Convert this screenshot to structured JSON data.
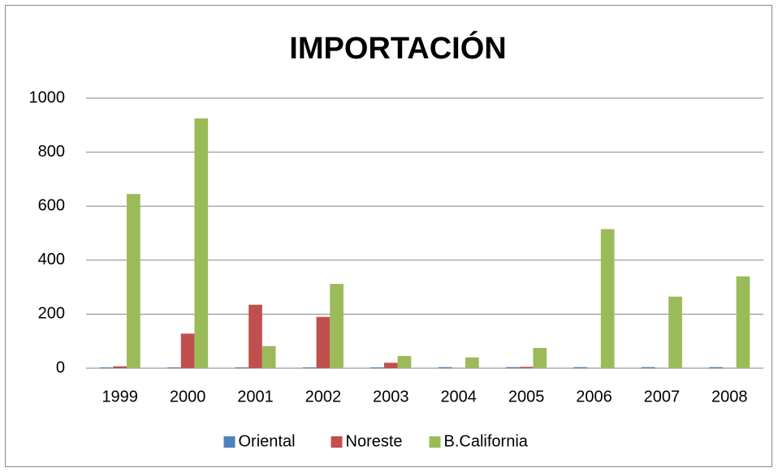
{
  "chart_data": {
    "type": "bar",
    "title": "IMPORTACIÓN",
    "categories": [
      "1999",
      "2000",
      "2001",
      "2002",
      "2003",
      "2004",
      "2005",
      "2006",
      "2007",
      "2008"
    ],
    "series": [
      {
        "name": "Oriental",
        "color": "#4f81bd",
        "values": [
          3,
          3,
          3,
          3,
          3,
          4,
          4,
          4,
          4,
          4
        ]
      },
      {
        "name": "Noreste",
        "color": "#c0504d",
        "values": [
          7,
          128,
          235,
          190,
          20,
          1,
          5,
          1,
          1,
          1
        ]
      },
      {
        "name": "B.California",
        "color": "#9bbb59",
        "values": [
          645,
          925,
          82,
          312,
          45,
          40,
          75,
          515,
          265,
          340
        ]
      }
    ],
    "ylim": [
      0,
      1000
    ],
    "yticks": [
      0,
      200,
      400,
      600,
      800,
      1000
    ],
    "grid": true,
    "legend": "bottom"
  }
}
